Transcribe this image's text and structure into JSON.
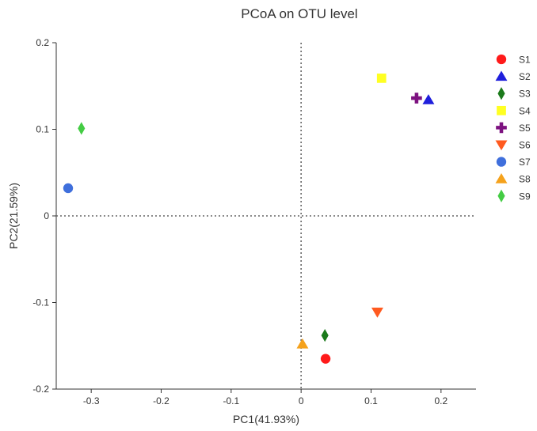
{
  "chart_data": {
    "type": "scatter",
    "title": "PCoA on OTU level",
    "xlabel": "PC1(41.93%)",
    "ylabel": "PC2(21.59%)",
    "xlim": [
      -0.35,
      0.25
    ],
    "ylim": [
      -0.2,
      0.2
    ],
    "xticks": [
      -0.3,
      -0.2,
      -0.1,
      0,
      0.1,
      0.2
    ],
    "xtick_labels": [
      "-0.3",
      "-0.2",
      "-0.1",
      "0",
      "0.1",
      "0.2"
    ],
    "yticks": [
      -0.2,
      -0.1,
      0,
      0.1,
      0.2
    ],
    "ytick_labels": [
      "-0.2",
      "-0.1",
      "0",
      "0.1",
      "0.2"
    ],
    "grid": false,
    "reference_lines": "dotted lines at x=0 and y=0",
    "legend_position": "right",
    "series": [
      {
        "name": "S1",
        "x": 0.035,
        "y": -0.165,
        "marker": "circle",
        "color": "#ff1a1a"
      },
      {
        "name": "S2",
        "x": 0.182,
        "y": 0.134,
        "marker": "triangle-up",
        "color": "#1f1fdc"
      },
      {
        "name": "S3",
        "x": 0.034,
        "y": -0.138,
        "marker": "diamond",
        "color": "#1b7a1b"
      },
      {
        "name": "S4",
        "x": 0.115,
        "y": 0.159,
        "marker": "square",
        "color": "#ffff22"
      },
      {
        "name": "S5",
        "x": 0.165,
        "y": 0.136,
        "marker": "cross",
        "color": "#7d1280"
      },
      {
        "name": "S6",
        "x": 0.109,
        "y": -0.111,
        "marker": "triangle-down",
        "color": "#ff5a1f"
      },
      {
        "name": "S7",
        "x": -0.333,
        "y": 0.032,
        "marker": "circle",
        "color": "#3f6fdc"
      },
      {
        "name": "S8",
        "x": 0.002,
        "y": -0.148,
        "marker": "triangle-up",
        "color": "#f5a21c"
      },
      {
        "name": "S9",
        "x": -0.314,
        "y": 0.101,
        "marker": "diamond",
        "color": "#44cc44"
      }
    ]
  }
}
